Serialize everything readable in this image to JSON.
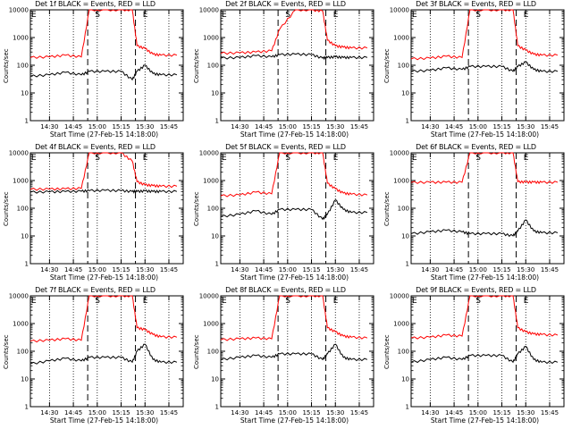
{
  "chart_data": [
    {
      "type": "line",
      "title": "Det 1f BLACK = Events, RED = LLD",
      "ylabel": "Counts/sec",
      "xlabel": "Start Time (27-Feb-15 14:18:00)",
      "x_ticks": [
        "14:30",
        "14:45",
        "15:00",
        "15:15",
        "15:30",
        "15:45"
      ],
      "y_ticks": [
        "1",
        "10",
        "100",
        "1000",
        "10000"
      ],
      "ylim": [
        1,
        10000
      ],
      "y_scale": "log",
      "markers": [
        "E",
        "S",
        "E"
      ],
      "series": [
        {
          "color": "#000000",
          "x": [
            "14:18",
            "14:30",
            "14:40",
            "14:50",
            "14:55",
            "15:05",
            "15:15",
            "15:22",
            "15:25",
            "15:30",
            "15:35",
            "15:40",
            "15:50"
          ],
          "values": [
            40,
            45,
            55,
            45,
            60,
            60,
            60,
            30,
            60,
            100,
            50,
            45,
            45
          ]
        },
        {
          "color": "#ff0000",
          "x": [
            "14:18",
            "14:30",
            "14:40",
            "14:50",
            "14:55",
            "15:05",
            "15:15",
            "15:22",
            "15:25",
            "15:30",
            "15:35",
            "15:40",
            "15:50"
          ],
          "values": [
            190,
            200,
            230,
            200,
            10000,
            10000,
            10000,
            10000,
            500,
            400,
            250,
            230,
            230
          ]
        }
      ]
    },
    {
      "type": "line",
      "title": "Det 2f BLACK = Events, RED = LLD",
      "ylabel": "Counts/sec",
      "xlabel": "Start Time (27-Feb-15 14:18:00)",
      "x_ticks": [
        "14:30",
        "14:45",
        "15:00",
        "15:15",
        "15:30",
        "15:45"
      ],
      "y_ticks": [
        "1",
        "10",
        "100",
        "1000",
        "10000"
      ],
      "ylim": [
        1,
        10000
      ],
      "y_scale": "log",
      "markers": [
        "E",
        "S",
        "E"
      ],
      "series": [
        {
          "color": "#000000",
          "x": [
            "14:18",
            "14:30",
            "14:40",
            "14:50",
            "14:55",
            "15:05",
            "15:15",
            "15:22",
            "15:25",
            "15:30",
            "15:35",
            "15:40",
            "15:50"
          ],
          "values": [
            180,
            190,
            220,
            200,
            240,
            250,
            240,
            180,
            190,
            200,
            190,
            190,
            190
          ]
        },
        {
          "color": "#ff0000",
          "x": [
            "14:18",
            "14:30",
            "14:40",
            "14:50",
            "14:55",
            "15:05",
            "15:15",
            "15:22",
            "15:25",
            "15:30",
            "15:35",
            "15:40",
            "15:50"
          ],
          "values": [
            270,
            280,
            300,
            330,
            2000,
            10000,
            10000,
            9000,
            800,
            500,
            450,
            420,
            420
          ]
        }
      ]
    },
    {
      "type": "line",
      "title": "Det 3f BLACK = Events, RED = LLD",
      "ylabel": "Counts/sec",
      "xlabel": "Start Time (27-Feb-15 14:18:00)",
      "x_ticks": [
        "14:30",
        "14:45",
        "15:00",
        "15:15",
        "15:30",
        "15:45"
      ],
      "y_ticks": [
        "1",
        "10",
        "100",
        "1000",
        "10000"
      ],
      "ylim": [
        1,
        10000
      ],
      "y_scale": "log",
      "markers": [
        "E",
        "S",
        "E"
      ],
      "series": [
        {
          "color": "#000000",
          "x": [
            "14:18",
            "14:30",
            "14:40",
            "14:50",
            "14:55",
            "15:05",
            "15:15",
            "15:22",
            "15:25",
            "15:30",
            "15:35",
            "15:40",
            "15:50"
          ],
          "values": [
            60,
            65,
            80,
            70,
            90,
            90,
            90,
            60,
            90,
            130,
            70,
            60,
            60
          ]
        },
        {
          "color": "#ff0000",
          "x": [
            "14:18",
            "14:30",
            "14:40",
            "14:50",
            "14:55",
            "15:05",
            "15:15",
            "15:22",
            "15:25",
            "15:30",
            "15:35",
            "15:40",
            "15:50"
          ],
          "values": [
            170,
            180,
            210,
            190,
            10000,
            10000,
            10000,
            10000,
            500,
            350,
            250,
            230,
            230
          ]
        }
      ]
    },
    {
      "type": "line",
      "title": "Det 4f BLACK = Events, RED = LLD",
      "ylabel": "Counts/sec",
      "xlabel": "Start Time (27-Feb-15 14:18:00)",
      "x_ticks": [
        "14:30",
        "14:45",
        "15:00",
        "15:15",
        "15:30",
        "15:45"
      ],
      "y_ticks": [
        "1",
        "10",
        "100",
        "1000",
        "10000"
      ],
      "ylim": [
        1,
        10000
      ],
      "y_scale": "log",
      "markers": [
        "E",
        "S",
        "E"
      ],
      "series": [
        {
          "color": "#000000",
          "x": [
            "14:18",
            "14:30",
            "14:40",
            "14:50",
            "14:55",
            "15:05",
            "15:15",
            "15:22",
            "15:25",
            "15:30",
            "15:35",
            "15:40",
            "15:50"
          ],
          "values": [
            380,
            390,
            400,
            410,
            430,
            440,
            430,
            400,
            400,
            420,
            400,
            400,
            400
          ]
        },
        {
          "color": "#ff0000",
          "x": [
            "14:18",
            "14:30",
            "14:40",
            "14:50",
            "14:55",
            "15:05",
            "15:15",
            "15:22",
            "15:25",
            "15:30",
            "15:35",
            "15:40",
            "15:50"
          ],
          "values": [
            480,
            490,
            500,
            520,
            10000,
            10000,
            10000,
            5000,
            900,
            700,
            650,
            620,
            620
          ]
        }
      ]
    },
    {
      "type": "line",
      "title": "Det 5f BLACK = Events, RED = LLD",
      "ylabel": "Counts/sec",
      "xlabel": "Start Time (27-Feb-15 14:18:00)",
      "x_ticks": [
        "14:30",
        "14:45",
        "15:00",
        "15:15",
        "15:30",
        "15:45"
      ],
      "y_ticks": [
        "1",
        "10",
        "100",
        "1000",
        "10000"
      ],
      "ylim": [
        1,
        10000
      ],
      "y_scale": "log",
      "markers": [
        "E",
        "S",
        "E"
      ],
      "series": [
        {
          "color": "#000000",
          "x": [
            "14:18",
            "14:30",
            "14:40",
            "14:50",
            "14:55",
            "15:05",
            "15:15",
            "15:22",
            "15:25",
            "15:30",
            "15:35",
            "15:40",
            "15:50"
          ],
          "values": [
            50,
            60,
            80,
            60,
            90,
            90,
            90,
            40,
            60,
            200,
            90,
            70,
            70
          ]
        },
        {
          "color": "#ff0000",
          "x": [
            "14:18",
            "14:30",
            "14:40",
            "14:50",
            "14:55",
            "15:05",
            "15:15",
            "15:22",
            "15:25",
            "15:30",
            "15:35",
            "15:40",
            "15:50"
          ],
          "values": [
            280,
            300,
            380,
            330,
            10000,
            10000,
            10000,
            10000,
            800,
            500,
            350,
            320,
            300
          ]
        }
      ]
    },
    {
      "type": "line",
      "title": "Det 6f BLACK = Events, RED = LLD",
      "ylabel": "Counts/sec",
      "xlabel": "Start Time (27-Feb-15 14:18:00)",
      "x_ticks": [
        "14:30",
        "14:45",
        "15:00",
        "15:15",
        "15:30",
        "15:45"
      ],
      "y_ticks": [
        "1",
        "10",
        "100",
        "1000",
        "10000"
      ],
      "ylim": [
        1,
        10000
      ],
      "y_scale": "log",
      "markers": [
        "E",
        "S",
        "E"
      ],
      "series": [
        {
          "color": "#000000",
          "x": [
            "14:18",
            "14:30",
            "14:40",
            "14:50",
            "14:55",
            "15:05",
            "15:15",
            "15:22",
            "15:25",
            "15:30",
            "15:35",
            "15:40",
            "15:50"
          ],
          "values": [
            12,
            14,
            16,
            14,
            12,
            12,
            12,
            10,
            15,
            38,
            15,
            13,
            13
          ]
        },
        {
          "color": "#ff0000",
          "x": [
            "14:18",
            "14:30",
            "14:40",
            "14:50",
            "14:55",
            "15:05",
            "15:15",
            "15:22",
            "15:25",
            "15:30",
            "15:35",
            "15:40",
            "15:50"
          ],
          "values": [
            850,
            860,
            870,
            860,
            10000,
            10000,
            10000,
            10000,
            900,
            880,
            870,
            860,
            860
          ]
        }
      ]
    },
    {
      "type": "line",
      "title": "Det 7f BLACK = Events, RED = LLD",
      "ylabel": "Counts/sec",
      "xlabel": "Start Time (27-Feb-15 14:18:00)",
      "x_ticks": [
        "14:30",
        "14:45",
        "15:00",
        "15:15",
        "15:30",
        "15:45"
      ],
      "y_ticks": [
        "1",
        "10",
        "100",
        "1000",
        "10000"
      ],
      "ylim": [
        1,
        10000
      ],
      "y_scale": "log",
      "markers": [
        "E",
        "S",
        "E"
      ],
      "series": [
        {
          "color": "#000000",
          "x": [
            "14:18",
            "14:30",
            "14:40",
            "14:50",
            "14:55",
            "15:05",
            "15:15",
            "15:22",
            "15:25",
            "15:30",
            "15:35",
            "15:40",
            "15:50"
          ],
          "values": [
            35,
            45,
            55,
            45,
            60,
            60,
            60,
            40,
            100,
            180,
            50,
            40,
            40
          ]
        },
        {
          "color": "#ff0000",
          "x": [
            "14:18",
            "14:30",
            "14:40",
            "14:50",
            "14:55",
            "15:05",
            "15:15",
            "15:22",
            "15:25",
            "15:30",
            "15:35",
            "15:40",
            "15:50"
          ],
          "values": [
            230,
            250,
            280,
            250,
            10000,
            10000,
            10000,
            10000,
            700,
            600,
            400,
            330,
            320
          ]
        }
      ]
    },
    {
      "type": "line",
      "title": "Det 8f BLACK = Events, RED = LLD",
      "ylabel": "Counts/sec",
      "xlabel": "Start Time (27-Feb-15 14:18:00)",
      "x_ticks": [
        "14:30",
        "14:45",
        "15:00",
        "15:15",
        "15:30",
        "15:45"
      ],
      "y_ticks": [
        "1",
        "10",
        "100",
        "1000",
        "10000"
      ],
      "ylim": [
        1,
        10000
      ],
      "y_scale": "log",
      "markers": [
        "E",
        "S",
        "E"
      ],
      "series": [
        {
          "color": "#000000",
          "x": [
            "14:18",
            "14:30",
            "14:40",
            "14:50",
            "14:55",
            "15:05",
            "15:15",
            "15:22",
            "15:25",
            "15:30",
            "15:35",
            "15:40",
            "15:50"
          ],
          "values": [
            50,
            60,
            70,
            60,
            80,
            80,
            80,
            50,
            80,
            180,
            60,
            50,
            50
          ]
        },
        {
          "color": "#ff0000",
          "x": [
            "14:18",
            "14:30",
            "14:40",
            "14:50",
            "14:55",
            "15:05",
            "15:15",
            "15:22",
            "15:25",
            "15:30",
            "15:35",
            "15:40",
            "15:50"
          ],
          "values": [
            260,
            280,
            300,
            280,
            10000,
            10000,
            10000,
            10000,
            700,
            500,
            350,
            320,
            300
          ]
        }
      ]
    },
    {
      "type": "line",
      "title": "Det 9f BLACK = Events, RED = LLD",
      "ylabel": "Counts/sec",
      "xlabel": "Start Time (27-Feb-15 14:18:00)",
      "x_ticks": [
        "14:30",
        "14:45",
        "15:00",
        "15:15",
        "15:30",
        "15:45"
      ],
      "y_ticks": [
        "1",
        "10",
        "100",
        "1000",
        "10000"
      ],
      "ylim": [
        1,
        10000
      ],
      "y_scale": "log",
      "markers": [
        "E",
        "S",
        "E"
      ],
      "series": [
        {
          "color": "#000000",
          "x": [
            "14:18",
            "14:30",
            "14:40",
            "14:50",
            "14:55",
            "15:05",
            "15:15",
            "15:22",
            "15:25",
            "15:30",
            "15:35",
            "15:40",
            "15:50"
          ],
          "values": [
            40,
            50,
            60,
            50,
            70,
            70,
            70,
            40,
            80,
            150,
            50,
            40,
            40
          ]
        },
        {
          "color": "#ff0000",
          "x": [
            "14:18",
            "14:30",
            "14:40",
            "14:50",
            "14:55",
            "15:05",
            "15:15",
            "15:22",
            "15:25",
            "15:30",
            "15:35",
            "15:40",
            "15:50"
          ],
          "values": [
            300,
            320,
            380,
            350,
            10000,
            10000,
            10000,
            10000,
            700,
            500,
            420,
            400,
            380
          ]
        }
      ]
    }
  ]
}
